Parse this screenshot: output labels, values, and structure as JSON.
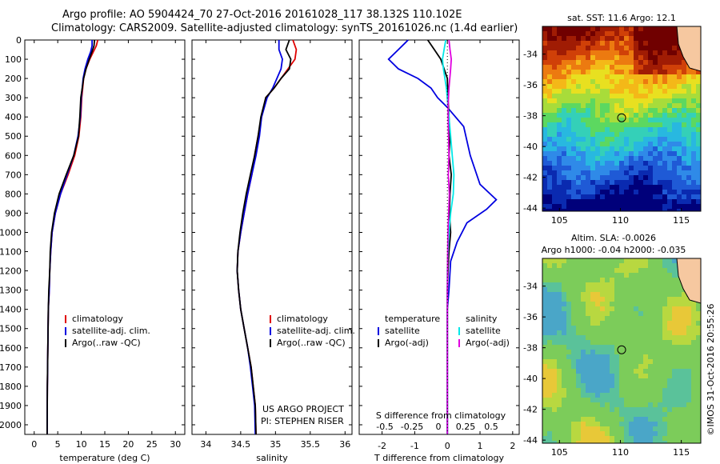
{
  "header": {
    "line1": "Argo profile: AO 5904424_70 27-Oct-2016 20161028_117 38.132S 110.102E",
    "line2": "Climatology: CARS2009. Satellite-adjusted climatology: synTS_20161026.nc (1.4d earlier)"
  },
  "colors": {
    "climatology": "#e00000",
    "satellite": "#0000e0",
    "argo": "#000000",
    "salinity_sat": "#00e8e8",
    "salinity_argo": "#e000e0"
  },
  "chart_data": [
    {
      "type": "line",
      "name": "temperature-profile",
      "xlabel": "temperature (deg C)",
      "xlim": [
        -2,
        32
      ],
      "xticks": [
        "0",
        "5",
        "10",
        "15",
        "20",
        "25",
        "30"
      ],
      "ylim": [
        0,
        2050
      ],
      "yticks": [
        "0",
        "100",
        "200",
        "300",
        "400",
        "500",
        "600",
        "700",
        "800",
        "900",
        "1000",
        "1100",
        "1200",
        "1300",
        "1400",
        "1500",
        "1600",
        "1700",
        "1800",
        "1900",
        "2000"
      ],
      "legend": [
        "climatology",
        "satellite-adj. clim.",
        "Argo(..raw -QC)"
      ],
      "series": [
        {
          "name": "climatology",
          "color": "#e00000",
          "x": [
            13.5,
            13.2,
            12.6,
            11.8,
            11.0,
            10.5,
            10.3,
            10.1,
            9.9,
            9.5,
            8.6,
            7.2,
            5.6,
            4.5,
            3.8,
            3.5,
            3.3,
            3.2,
            3.0,
            2.9,
            2.8,
            2.75
          ],
          "y": [
            0,
            30,
            60,
            100,
            150,
            200,
            250,
            300,
            400,
            500,
            600,
            700,
            800,
            900,
            1000,
            1100,
            1200,
            1300,
            1400,
            1600,
            1800,
            2050
          ]
        },
        {
          "name": "satellite-adj. clim.",
          "color": "#0000e0",
          "x": [
            12.3,
            12.3,
            12.0,
            11.4,
            10.8,
            10.4,
            10.2,
            10.0,
            9.8,
            9.3,
            8.4,
            7.0,
            5.6,
            4.5,
            3.8,
            3.5,
            3.3,
            3.2,
            3.0,
            2.9,
            2.8,
            2.75
          ],
          "y": [
            0,
            30,
            60,
            100,
            150,
            200,
            250,
            300,
            400,
            500,
            600,
            700,
            800,
            900,
            1000,
            1100,
            1200,
            1300,
            1400,
            1600,
            1800,
            2050
          ]
        },
        {
          "name": "Argo(..raw -QC)",
          "color": "#000000",
          "x": [
            12.8,
            12.7,
            12.3,
            11.7,
            11.0,
            10.5,
            10.2,
            9.9,
            9.7,
            9.4,
            8.4,
            6.8,
            5.3,
            4.3,
            3.7,
            3.4,
            3.3,
            3.1,
            3.0,
            2.9,
            2.8,
            2.75
          ],
          "y": [
            0,
            30,
            60,
            100,
            150,
            200,
            250,
            300,
            400,
            500,
            600,
            700,
            800,
            900,
            1000,
            1100,
            1200,
            1300,
            1400,
            1600,
            1800,
            2050
          ]
        }
      ]
    },
    {
      "type": "line",
      "name": "salinity-profile",
      "xlabel": "salinity",
      "xlim": [
        33.8,
        36.1
      ],
      "xticks": [
        "34",
        "34.5",
        "35",
        "35.5",
        "36"
      ],
      "ylim": [
        0,
        2050
      ],
      "legend": [
        "climatology",
        "satellite-adj. clim.",
        "Argo(..raw -QC)"
      ],
      "annotation": [
        "US ARGO PROJECT",
        "PI: STEPHEN RISER"
      ],
      "series": [
        {
          "name": "climatology",
          "color": "#e00000",
          "x": [
            35.25,
            35.3,
            35.28,
            35.18,
            35.08,
            34.98,
            34.86,
            34.8,
            34.75,
            34.7,
            34.66,
            34.6,
            34.55,
            34.5,
            34.46,
            34.45,
            34.47,
            34.5,
            34.55,
            34.6,
            34.65,
            34.68,
            34.71,
            34.72
          ],
          "y": [
            0,
            50,
            100,
            150,
            200,
            250,
            300,
            400,
            500,
            600,
            700,
            800,
            900,
            1000,
            1100,
            1200,
            1300,
            1400,
            1500,
            1600,
            1700,
            1800,
            1900,
            2050
          ]
        },
        {
          "name": "satellite-adj. clim.",
          "color": "#0000e0",
          "x": [
            35.05,
            35.05,
            35.1,
            35.08,
            35.02,
            34.96,
            34.88,
            34.8,
            34.77,
            34.72,
            34.66,
            34.6,
            34.55,
            34.5,
            34.46,
            34.45,
            34.47,
            34.5,
            34.55,
            34.6,
            34.64,
            34.67,
            34.7,
            34.71
          ],
          "y": [
            0,
            50,
            100,
            150,
            200,
            250,
            300,
            400,
            500,
            600,
            700,
            800,
            900,
            1000,
            1100,
            1200,
            1300,
            1400,
            1500,
            1600,
            1700,
            1800,
            1900,
            2050
          ]
        },
        {
          "name": "Argo(..raw -QC)",
          "color": "#000000",
          "x": [
            35.2,
            35.15,
            35.22,
            35.2,
            35.08,
            34.98,
            34.86,
            34.79,
            34.75,
            34.7,
            34.64,
            34.58,
            34.53,
            34.49,
            34.46,
            34.45,
            34.47,
            34.5,
            34.55,
            34.6,
            34.65,
            34.68,
            34.71,
            34.72
          ],
          "y": [
            0,
            50,
            100,
            150,
            200,
            250,
            300,
            400,
            500,
            600,
            700,
            800,
            900,
            1000,
            1100,
            1200,
            1300,
            1400,
            1500,
            1600,
            1700,
            1800,
            1900,
            2050
          ]
        }
      ]
    },
    {
      "type": "line",
      "name": "difference-profile",
      "xlabel": "T difference from climatology",
      "xlabel2": "S difference from climatology",
      "xlim": [
        -2.7,
        2.2
      ],
      "xticks": [
        "-2",
        "-1",
        "0",
        "1",
        "2"
      ],
      "xticks2": [
        "-0.5",
        "-0.25",
        "0",
        "0.25",
        "0.5"
      ],
      "ylim": [
        0,
        2050
      ],
      "legend": [
        {
          "group": "temperature",
          "items": [
            "satellite",
            "Argo(-adj)"
          ]
        },
        {
          "group": "salinity",
          "items": [
            "satellite",
            "Argo(-adj)"
          ]
        }
      ],
      "series": [
        {
          "name": "temperature satellite",
          "color": "#0000e0",
          "x": [
            -1.2,
            -1.5,
            -1.8,
            -1.5,
            -0.9,
            -0.5,
            -0.3,
            0,
            0.5,
            0.7,
            1.0,
            1.5,
            1.2,
            0.6,
            0.3,
            0.1,
            0.05,
            0,
            0,
            0,
            0,
            0
          ],
          "y": [
            0,
            50,
            100,
            150,
            200,
            250,
            300,
            350,
            450,
            600,
            750,
            830,
            880,
            950,
            1050,
            1150,
            1300,
            1400,
            1500,
            1700,
            1900,
            2050
          ]
        },
        {
          "name": "temperature Argo(-adj)",
          "color": "#000000",
          "x": [
            -0.6,
            -0.4,
            -0.2,
            -0.1,
            0,
            0.02,
            0.05,
            0.08,
            0.05,
            0.12,
            0.08,
            0.06,
            0.1,
            0.05,
            0.02,
            0,
            0,
            0,
            0,
            0
          ],
          "y": [
            0,
            50,
            100,
            150,
            200,
            300,
            400,
            500,
            600,
            700,
            800,
            900,
            1000,
            1100,
            1200,
            1300,
            1400,
            1600,
            1800,
            2050
          ]
        },
        {
          "name": "salinity satellite",
          "color": "#00e8e8",
          "x": [
            -0.05,
            -0.1,
            -0.15,
            -0.12,
            -0.03,
            0.05,
            0.1,
            0.15,
            0.2,
            0.18,
            0.1,
            0.05,
            0.02,
            0,
            0,
            0,
            0,
            0
          ],
          "y": [
            0,
            50,
            100,
            150,
            250,
            400,
            500,
            600,
            700,
            800,
            900,
            1000,
            1100,
            1200,
            1400,
            1600,
            1800,
            2050
          ]
        },
        {
          "name": "salinity Argo(-adj)",
          "color": "#e000e0",
          "x": [
            0.05,
            0.08,
            0.12,
            0.1,
            0.05,
            0.02,
            0.03,
            0.05,
            0.03,
            0.06,
            0.04,
            0.02,
            0.01,
            0,
            0,
            0
          ],
          "y": [
            0,
            50,
            100,
            150,
            250,
            350,
            450,
            600,
            700,
            800,
            900,
            1000,
            1100,
            1300,
            1600,
            2050
          ]
        }
      ]
    },
    {
      "type": "heatmap",
      "name": "sst-map",
      "title": "sat. SST: 11.6 Argo: 12.1",
      "xlim": [
        103.6,
        116.6
      ],
      "ylim": [
        -44.2,
        -32.2
      ],
      "xticks": [
        "105",
        "110",
        "115"
      ],
      "yticks": [
        "-34",
        "-36",
        "-38",
        "-40",
        "-42",
        "-44"
      ],
      "marker": {
        "lon": 110.102,
        "lat": -38.132
      }
    },
    {
      "type": "heatmap",
      "name": "sla-map",
      "title": "Altim. SLA: -0.0026",
      "subtitle": "Argo h1000: -0.04 h2000: -0.035",
      "xlim": [
        103.6,
        116.6
      ],
      "ylim": [
        -44.2,
        -32.2
      ],
      "xticks": [
        "105",
        "110",
        "115"
      ],
      "yticks": [
        "-34",
        "-36",
        "-38",
        "-40",
        "-42",
        "-44"
      ],
      "marker": {
        "lon": 110.102,
        "lat": -38.132
      }
    }
  ],
  "footer": {
    "imos": "©IMOS 31-Oct-2016 20:55:26"
  }
}
